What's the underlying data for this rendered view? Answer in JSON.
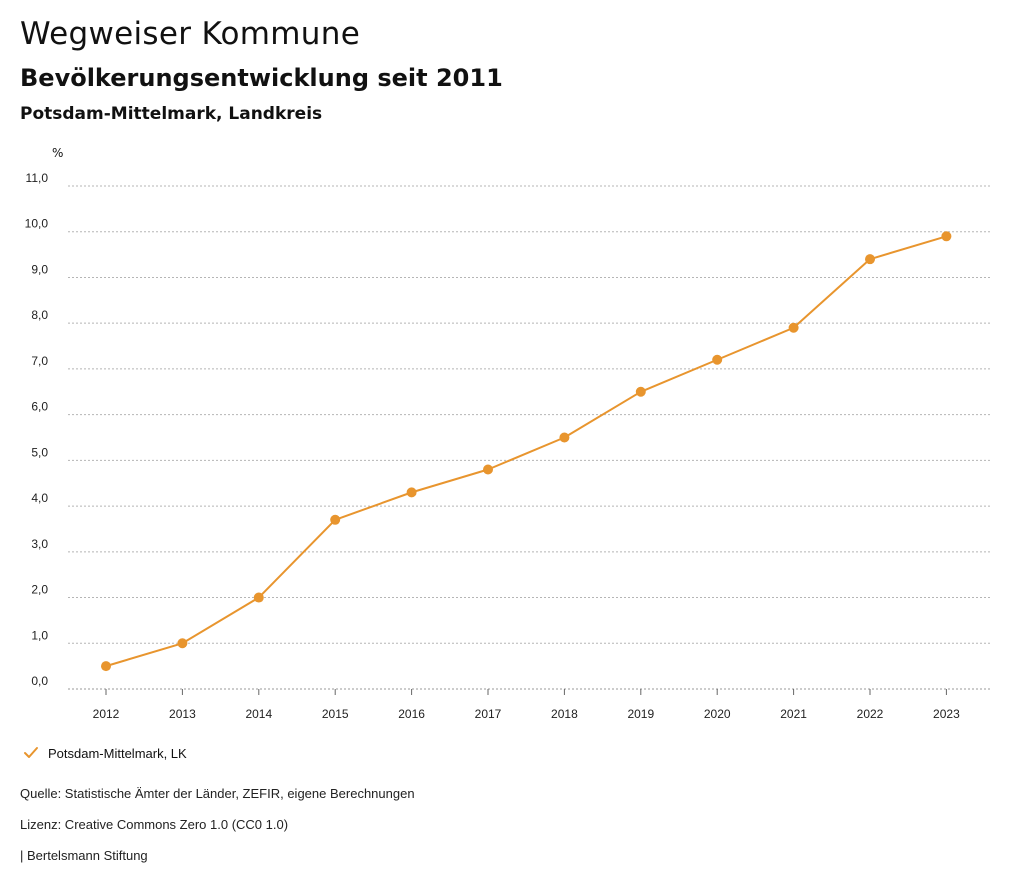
{
  "header": {
    "title": "Wegweiser Kommune",
    "subtitle": "Bevölkerungsentwicklung seit 2011",
    "region": "Potsdam-Mittelmark, Landkreis"
  },
  "chart_data": {
    "type": "line",
    "unit_label": "%",
    "x": [
      "2012",
      "2013",
      "2014",
      "2015",
      "2016",
      "2017",
      "2018",
      "2019",
      "2020",
      "2021",
      "2022",
      "2023"
    ],
    "series": [
      {
        "name": "Potsdam-Mittelmark, LK",
        "color": "#E8952E",
        "values": [
          0.5,
          1.0,
          2.0,
          3.7,
          4.3,
          4.8,
          5.5,
          6.5,
          7.2,
          7.9,
          9.4,
          9.9
        ]
      }
    ],
    "yticks": [
      "0,0",
      "1,0",
      "2,0",
      "3,0",
      "4,0",
      "5,0",
      "6,0",
      "7,0",
      "8,0",
      "9,0",
      "10,0",
      "11,0"
    ],
    "ylim": [
      0,
      11
    ],
    "grid": true,
    "legend_position": "bottom-left"
  },
  "footer": {
    "source": "Quelle: Statistische Ämter der Länder, ZEFIR, eigene Berechnungen",
    "license": "Lizenz: Creative Commons Zero 1.0 (CC0 1.0)",
    "brand": "| Bertelsmann Stiftung"
  }
}
